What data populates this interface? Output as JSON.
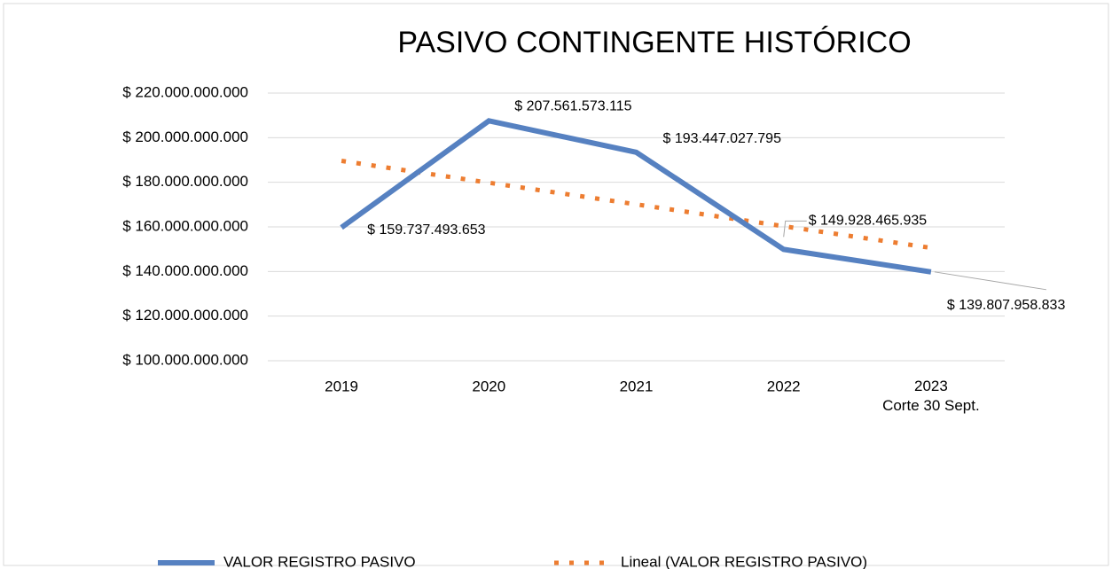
{
  "chart_data": {
    "type": "line",
    "title": "PASIVO CONTINGENTE HISTÓRICO",
    "categories": [
      "2019",
      "2020",
      "2021",
      "2022",
      "2023\nCorte 30 Sept."
    ],
    "series": [
      {
        "name": "VALOR REGISTRO PASIVO",
        "color": "#5681c1",
        "style": "solid",
        "values": [
          159737493653,
          207561573115,
          193447027795,
          149928465935,
          139807958833
        ],
        "value_labels": [
          "$ 159.737.493.653",
          "$ 207.561.573.115",
          "$ 193.447.027.795",
          "$ 149.928.465.935",
          "$ 139.807.958.833"
        ]
      },
      {
        "name": "Lineal (VALOR REGISTRO PASIVO)",
        "color": "#ed7d31",
        "style": "dotted",
        "values": [
          189600000000,
          179800000000,
          170100000000,
          160300000000,
          150600000000
        ]
      }
    ],
    "ylim": [
      100000000000,
      220000000000
    ],
    "yticks": [
      {
        "value": 100000000000,
        "label": "$ 100.000.000.000"
      },
      {
        "value": 120000000000,
        "label": "$ 120.000.000.000"
      },
      {
        "value": 140000000000,
        "label": "$ 140.000.000.000"
      },
      {
        "value": 160000000000,
        "label": "$ 160.000.000.000"
      },
      {
        "value": 180000000000,
        "label": "$ 180.000.000.000"
      },
      {
        "value": 200000000000,
        "label": "$ 200.000.000.000"
      },
      {
        "value": 220000000000,
        "label": "$ 220.000.000.000"
      }
    ],
    "grid": true,
    "legend": "bottom"
  }
}
